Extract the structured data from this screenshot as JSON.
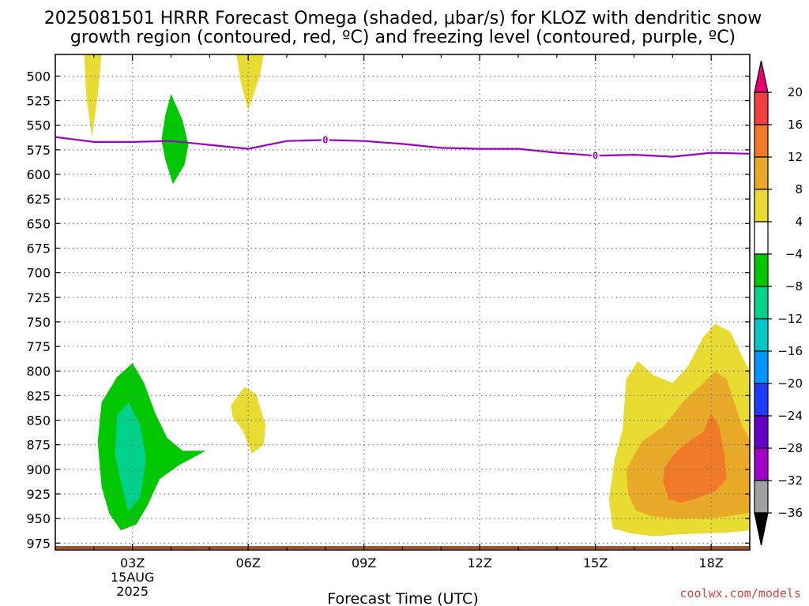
{
  "title": {
    "line1": "2025081501 HRRR Forecast Omega (shaded, μbar/s) for KLOZ with dendritic snow",
    "line2": "growth region (contoured, red, ºC) and freezing level (contoured, purple, ºC)"
  },
  "xlabel": "Forecast Time (UTC)",
  "credit": "coolwx.com/models",
  "colors": {
    "freezing_line": "#9b00c8",
    "ground": "#a0522d",
    "dendritic": "#ff0000"
  },
  "chart_data": {
    "type": "heatmap",
    "title": "2025081501 HRRR Forecast Omega (shaded, μbar/s) for KLOZ with dendritic snow growth region (contoured, red, ºC) and freezing level (contoured, purple, ºC)",
    "xlabel": "Forecast Time (UTC)",
    "ylabel": "",
    "x_ticks": [
      {
        "hour": 3,
        "label": "03Z",
        "sub": [
          "15AUG",
          "2025"
        ]
      },
      {
        "hour": 6,
        "label": "06Z",
        "sub": []
      },
      {
        "hour": 9,
        "label": "09Z",
        "sub": []
      },
      {
        "hour": 12,
        "label": "12Z",
        "sub": []
      },
      {
        "hour": 15,
        "label": "15Z",
        "sub": []
      },
      {
        "hour": 18,
        "label": "18Z",
        "sub": []
      }
    ],
    "xlim": [
      1,
      19
    ],
    "y_ticks": [
      500,
      525,
      550,
      575,
      600,
      625,
      650,
      675,
      700,
      725,
      750,
      775,
      800,
      825,
      850,
      875,
      900,
      925,
      950,
      975
    ],
    "ylim": [
      478,
      982
    ],
    "colorbar": {
      "unit": "μbar/s",
      "bins": [
        {
          "low": 20,
          "high": 24,
          "color": "#e8006e"
        },
        {
          "low": 16,
          "high": 20,
          "color": "#f04040"
        },
        {
          "low": 12,
          "high": 16,
          "color": "#f07a28"
        },
        {
          "low": 8,
          "high": 12,
          "color": "#e8aa28"
        },
        {
          "low": 4,
          "high": 8,
          "color": "#e8dc32"
        },
        {
          "low": -4,
          "high": 4,
          "color": "#ffffff"
        },
        {
          "low": -8,
          "high": -4,
          "color": "#00c800"
        },
        {
          "low": -12,
          "high": -8,
          "color": "#00d28c"
        },
        {
          "low": -16,
          "high": -12,
          "color": "#00c8c8"
        },
        {
          "low": -20,
          "high": -16,
          "color": "#0096ff"
        },
        {
          "low": -24,
          "high": -20,
          "color": "#1e3cff"
        },
        {
          "low": -28,
          "high": -24,
          "color": "#6400c8"
        },
        {
          "low": -32,
          "high": -28,
          "color": "#a000c8"
        },
        {
          "low": -36,
          "high": -32,
          "color": "#a0a0a0"
        },
        {
          "low": -40,
          "high": -36,
          "color": "#000000"
        }
      ],
      "labels": [
        "20",
        "16",
        "12",
        "8",
        "4",
        "−4",
        "−8",
        "−12",
        "−16",
        "−20",
        "−24",
        "−28",
        "−32",
        "−36"
      ]
    },
    "freezing_level": {
      "value_label": "0",
      "points": [
        [
          1,
          562
        ],
        [
          2,
          567
        ],
        [
          3,
          567
        ],
        [
          4,
          566
        ],
        [
          5,
          570
        ],
        [
          6,
          574
        ],
        [
          7,
          566
        ],
        [
          8,
          565
        ],
        [
          9,
          566
        ],
        [
          10,
          569
        ],
        [
          11,
          573
        ],
        [
          12,
          574
        ],
        [
          13,
          574
        ],
        [
          14,
          578
        ],
        [
          15,
          581
        ],
        [
          16,
          580
        ],
        [
          17,
          582
        ],
        [
          18,
          578
        ],
        [
          19,
          579
        ]
      ],
      "label_positions": [
        [
          8,
          565
        ],
        [
          15,
          581
        ]
      ]
    },
    "ground_level_hpa": 978,
    "shaded_regions": [
      {
        "value_bin": "4 to 8",
        "color": "#e8dc32",
        "points": [
          [
            1.75,
            478
          ],
          [
            2.2,
            478
          ],
          [
            2.1,
            520
          ],
          [
            1.95,
            562
          ],
          [
            1.8,
            520
          ]
        ]
      },
      {
        "value_bin": "4 to 8",
        "color": "#e8dc32",
        "points": [
          [
            5.7,
            478
          ],
          [
            6.4,
            478
          ],
          [
            6.3,
            500
          ],
          [
            6.0,
            535
          ],
          [
            5.8,
            505
          ]
        ]
      },
      {
        "value_bin": "-8 to -4",
        "color": "#00c800",
        "points": [
          [
            4.0,
            518
          ],
          [
            4.3,
            545
          ],
          [
            4.45,
            570
          ],
          [
            4.35,
            590
          ],
          [
            4.05,
            610
          ],
          [
            3.85,
            585
          ],
          [
            3.75,
            565
          ],
          [
            3.85,
            540
          ]
        ]
      },
      {
        "value_bin": "-8 to -4",
        "color": "#00c800",
        "points": [
          [
            2.2,
            832
          ],
          [
            2.6,
            806
          ],
          [
            3.0,
            792
          ],
          [
            3.3,
            812
          ],
          [
            3.6,
            844
          ],
          [
            3.9,
            868
          ],
          [
            4.3,
            881
          ],
          [
            4.9,
            881
          ],
          [
            4.2,
            896
          ],
          [
            3.7,
            910
          ],
          [
            3.4,
            936
          ],
          [
            3.1,
            956
          ],
          [
            2.7,
            962
          ],
          [
            2.4,
            945
          ],
          [
            2.2,
            918
          ],
          [
            2.1,
            872
          ]
        ]
      },
      {
        "value_bin": "-12 to -8",
        "color": "#00d28c",
        "points": [
          [
            2.6,
            845
          ],
          [
            2.9,
            832
          ],
          [
            3.2,
            855
          ],
          [
            3.35,
            890
          ],
          [
            3.2,
            928
          ],
          [
            2.9,
            943
          ],
          [
            2.75,
            922
          ],
          [
            2.55,
            885
          ]
        ]
      },
      {
        "value_bin": "4 to 8",
        "color": "#e8dc32",
        "points": [
          [
            5.55,
            835
          ],
          [
            5.9,
            816
          ],
          [
            6.2,
            823
          ],
          [
            6.45,
            855
          ],
          [
            6.4,
            875
          ],
          [
            6.1,
            884
          ],
          [
            5.85,
            860
          ],
          [
            5.6,
            847
          ]
        ]
      },
      {
        "value_bin": "4 to 8",
        "color": "#e8dc32",
        "points": [
          [
            15.8,
            808
          ],
          [
            16.1,
            790
          ],
          [
            16.5,
            804
          ],
          [
            17.0,
            812
          ],
          [
            17.4,
            795
          ],
          [
            17.8,
            765
          ],
          [
            18.1,
            752
          ],
          [
            18.5,
            760
          ],
          [
            18.8,
            785
          ],
          [
            19.0,
            800
          ],
          [
            19.0,
            962
          ],
          [
            18.5,
            964
          ],
          [
            17.9,
            965
          ],
          [
            17.2,
            966
          ],
          [
            16.5,
            968
          ],
          [
            15.9,
            965
          ],
          [
            15.45,
            960
          ],
          [
            15.35,
            930
          ],
          [
            15.5,
            890
          ],
          [
            15.7,
            860
          ]
        ]
      },
      {
        "value_bin": "8 to 12",
        "color": "#e8aa28",
        "points": [
          [
            15.8,
            900
          ],
          [
            16.2,
            872
          ],
          [
            16.8,
            855
          ],
          [
            17.3,
            830
          ],
          [
            17.8,
            812
          ],
          [
            18.1,
            800
          ],
          [
            18.4,
            808
          ],
          [
            18.6,
            832
          ],
          [
            18.8,
            855
          ],
          [
            19.0,
            870
          ],
          [
            19.0,
            944
          ],
          [
            18.4,
            948
          ],
          [
            17.8,
            950
          ],
          [
            17.1,
            950
          ],
          [
            16.5,
            948
          ],
          [
            16.05,
            942
          ],
          [
            15.85,
            925
          ]
        ]
      },
      {
        "value_bin": "12 to 16",
        "color": "#f07a28",
        "points": [
          [
            16.8,
            897
          ],
          [
            17.1,
            882
          ],
          [
            17.5,
            869
          ],
          [
            17.8,
            862
          ],
          [
            18.0,
            843
          ],
          [
            18.2,
            856
          ],
          [
            18.35,
            886
          ],
          [
            18.4,
            910
          ],
          [
            18.1,
            922
          ],
          [
            17.6,
            930
          ],
          [
            17.2,
            934
          ],
          [
            16.9,
            930
          ],
          [
            16.75,
            912
          ]
        ]
      }
    ]
  }
}
